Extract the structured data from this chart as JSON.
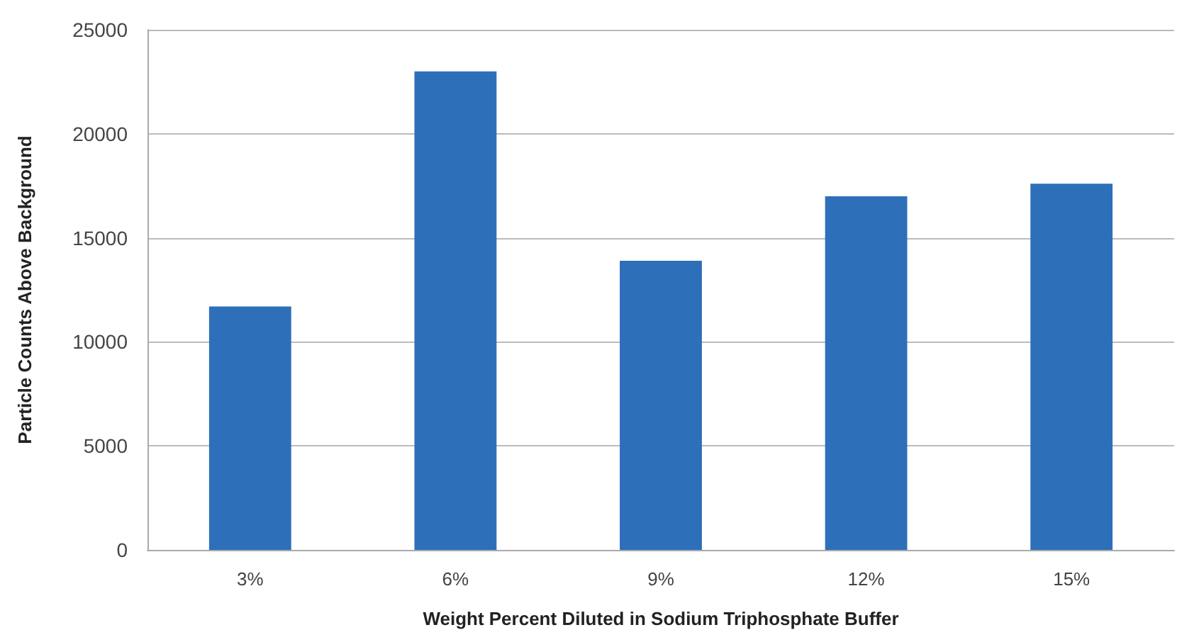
{
  "chart_data": {
    "type": "bar",
    "xlabel": "Weight Percent Diluted in Sodium Triphosphate Buffer",
    "ylabel": "Particle Counts Above Background",
    "categories": [
      "3%",
      "6%",
      "9%",
      "12%",
      "15%"
    ],
    "values": [
      11700,
      23000,
      13900,
      17000,
      17600
    ],
    "color": "#2e6fba",
    "ylim": [
      0,
      25000
    ],
    "yticks": [
      0,
      5000,
      10000,
      15000,
      20000,
      25000
    ],
    "grid": "y"
  }
}
